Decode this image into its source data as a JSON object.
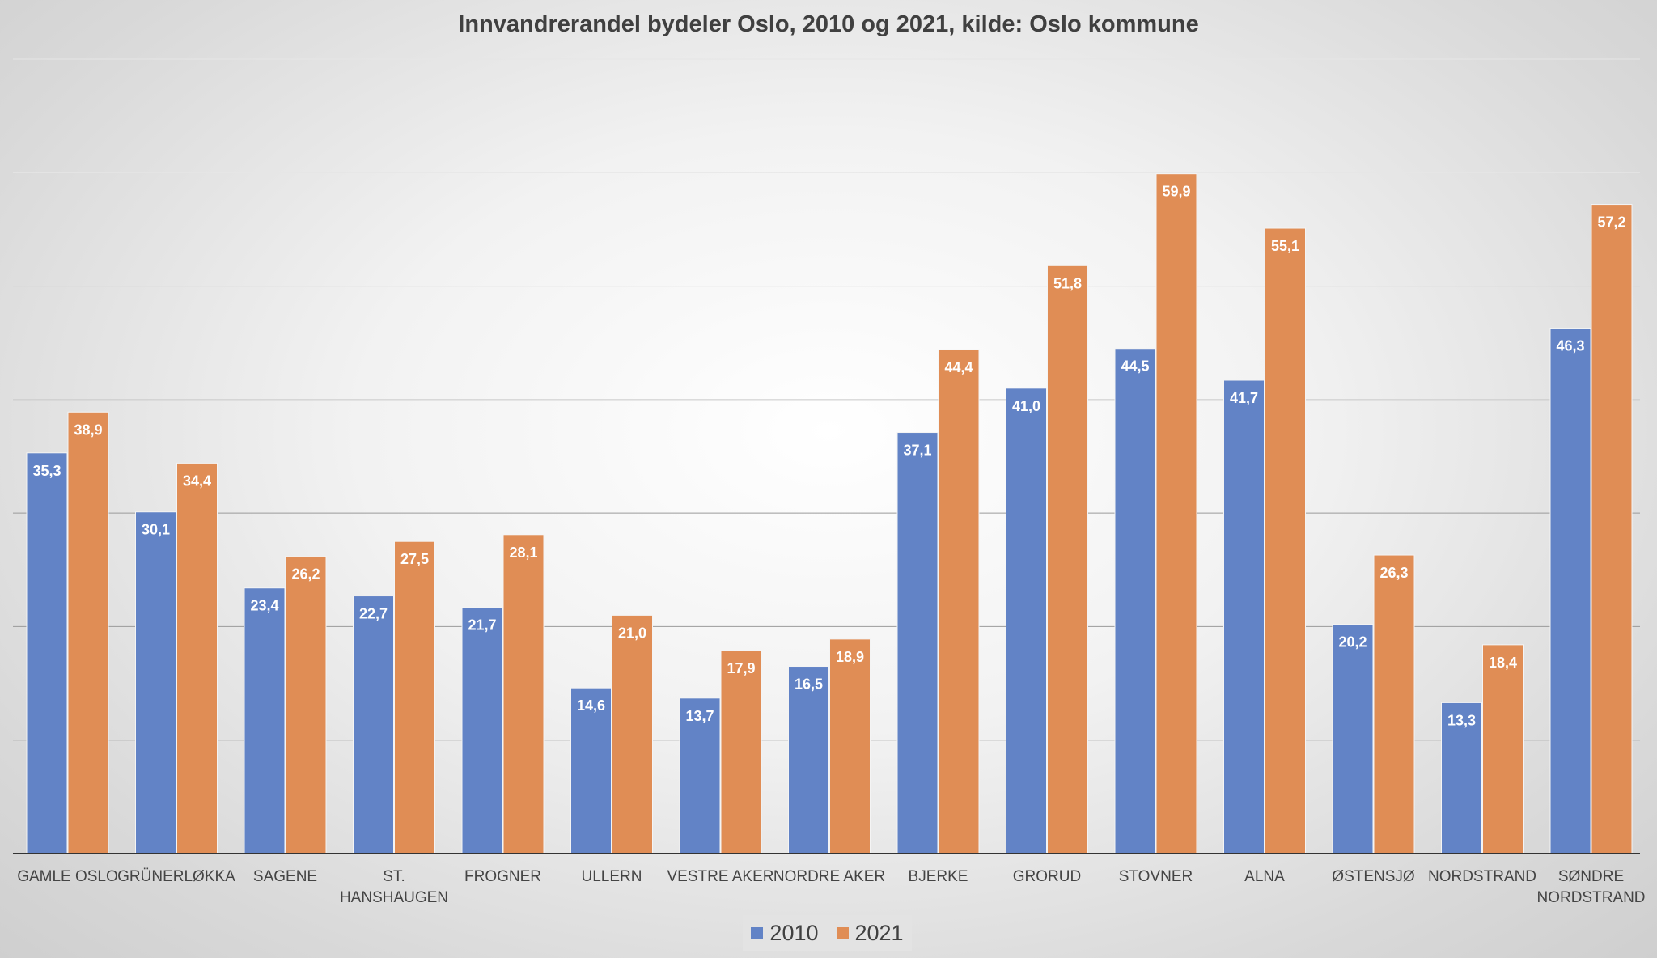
{
  "chart_data": {
    "type": "bar",
    "title": "Innvandrerandel bydeler Oslo, 2010 og 2021, kilde: Oslo kommune",
    "xlabel": "",
    "ylabel": "",
    "ylim": [
      0,
      70
    ],
    "grid": true,
    "legend_position": "bottom",
    "categories": [
      [
        "GAMLE OSLO"
      ],
      [
        "GRÜNERLØKKA"
      ],
      [
        "SAGENE"
      ],
      [
        "ST.",
        "HANSHAUGEN"
      ],
      [
        "FROGNER"
      ],
      [
        "ULLERN"
      ],
      [
        "VESTRE AKER"
      ],
      [
        "NORDRE AKER"
      ],
      [
        "BJERKE"
      ],
      [
        "GRORUD"
      ],
      [
        "STOVNER"
      ],
      [
        "ALNA"
      ],
      [
        "ØSTENSJØ"
      ],
      [
        "NORDSTRAND"
      ],
      [
        "SØNDRE",
        "NORDSTRAND"
      ]
    ],
    "series": [
      {
        "name": "2010",
        "color": "#4472C4",
        "values": [
          35.3,
          30.1,
          23.4,
          22.7,
          21.7,
          14.6,
          13.7,
          16.5,
          37.1,
          41.0,
          44.5,
          41.7,
          20.2,
          13.3,
          46.3
        ]
      },
      {
        "name": "2021",
        "color": "#ED7D31",
        "values": [
          38.9,
          34.4,
          26.2,
          27.5,
          28.1,
          21.0,
          17.9,
          18.9,
          44.4,
          51.8,
          59.9,
          55.1,
          26.3,
          18.4,
          57.2
        ]
      }
    ]
  }
}
